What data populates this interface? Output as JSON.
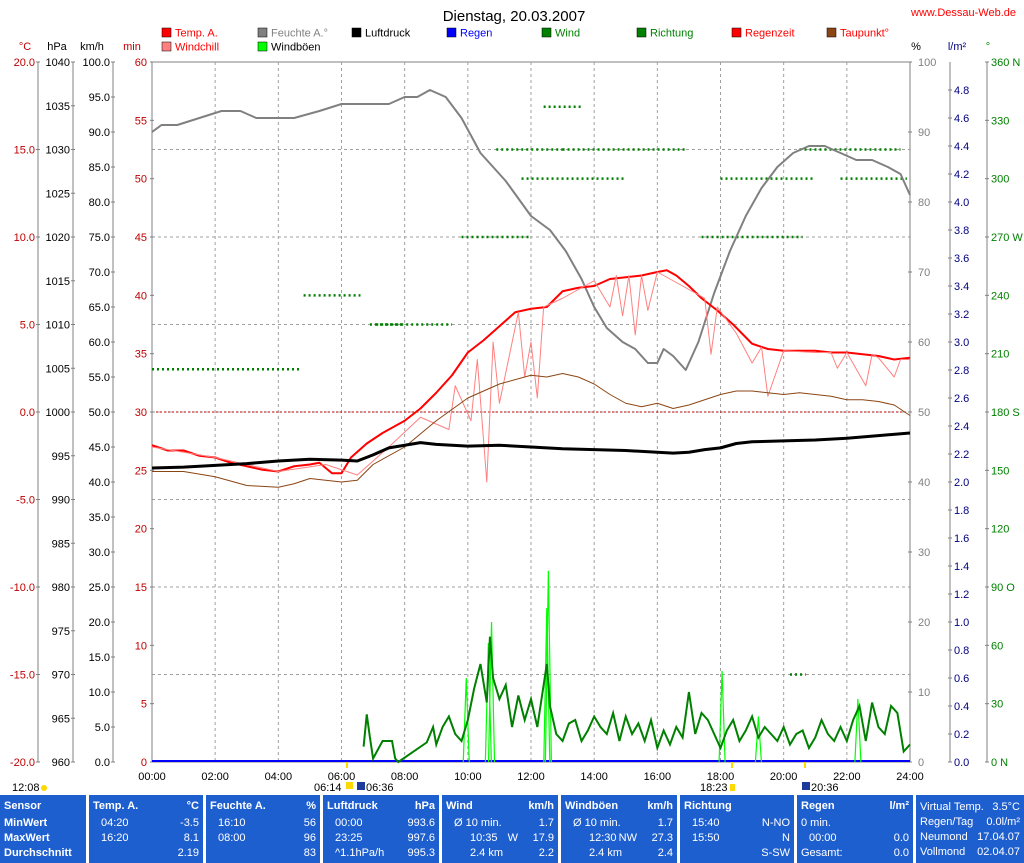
{
  "title": "Dienstag, 20.03.2007",
  "site": "www.Dessau-Web.de",
  "legend": [
    {
      "label": "Temp. A.",
      "color": "#ff0000",
      "text_color": "#ff0000"
    },
    {
      "label": "Windchill",
      "color": "#ff8080",
      "text_color": "#ff0000"
    },
    {
      "label": "Feuchte A.°",
      "color": "#808080",
      "text_color": "#808080"
    },
    {
      "label": "Windböen",
      "color": "#00ff00",
      "text_color": "#000000"
    },
    {
      "label": "Luftdruck",
      "color": "#000000",
      "text_color": "#000000"
    },
    {
      "label": "Regen",
      "color": "#0000ff",
      "text_color": "#0000ff"
    },
    {
      "label": "Wind",
      "color": "#008000",
      "text_color": "#008000"
    },
    {
      "label": "Richtung",
      "color": "#008000",
      "text_color": "#008000"
    },
    {
      "label": "Regenzeit",
      "color": "#ff0000",
      "text_color": "#ff0000"
    },
    {
      "label": "Taupunkt°",
      "color": "#8b4513",
      "text_color": "#ff0000"
    }
  ],
  "axis_units": {
    "temp": "°C",
    "pressure": "hPa",
    "wind": "km/h",
    "minutes": "min",
    "humidity": "%",
    "rain": "l/m²",
    "direction": "°"
  },
  "chart_data": {
    "type": "line",
    "x_ticks": [
      "00:00",
      "02:00",
      "04:00",
      "06:00",
      "08:00",
      "10:00",
      "12:00",
      "14:00",
      "16:00",
      "18:00",
      "20:00",
      "22:00",
      "24:00"
    ],
    "axes": {
      "temp": {
        "min": -20,
        "max": 20,
        "ticks": [
          "20.0",
          "15.0",
          "10.0",
          "5.0",
          "0.0",
          "-5.0",
          "-10.0",
          "-15.0",
          "-20.0"
        ]
      },
      "pressure": {
        "min": 960,
        "max": 1040,
        "ticks": [
          "1040",
          "1035",
          "1030",
          "1025",
          "1020",
          "1015",
          "1010",
          "1005",
          "1000",
          "995",
          "990",
          "985",
          "980",
          "975",
          "970",
          "965",
          "960"
        ]
      },
      "wind": {
        "min": 0,
        "max": 100,
        "ticks": [
          "100.0",
          "95.0",
          "90.0",
          "85.0",
          "80.0",
          "75.0",
          "70.0",
          "65.0",
          "60.0",
          "55.0",
          "50.0",
          "45.0",
          "40.0",
          "35.0",
          "30.0",
          "25.0",
          "20.0",
          "15.0",
          "10.0",
          "5.0",
          "0.0"
        ]
      },
      "minutes": {
        "min": 0,
        "max": 60,
        "ticks": [
          "60",
          "55",
          "50",
          "45",
          "40",
          "35",
          "30",
          "25",
          "20",
          "15",
          "10",
          "5",
          "0"
        ]
      },
      "humidity": {
        "min": 0,
        "max": 100,
        "ticks": [
          "100",
          "90",
          "80",
          "70",
          "60",
          "50",
          "40",
          "30",
          "20",
          "10",
          "0"
        ]
      },
      "rain": {
        "min": 0,
        "max": 5,
        "ticks": [
          "4.8",
          "4.6",
          "4.4",
          "4.2",
          "4.0",
          "3.8",
          "3.6",
          "3.4",
          "3.2",
          "3.0",
          "2.8",
          "2.6",
          "2.4",
          "2.2",
          "2.0",
          "1.8",
          "1.6",
          "1.4",
          "1.2",
          "1.0",
          "0.8",
          "0.6",
          "0.4",
          "0.2",
          "0.0"
        ]
      },
      "direction": {
        "min": 0,
        "max": 360,
        "ticks": [
          {
            "v": 360,
            "t": "360 N"
          },
          {
            "v": 330,
            "t": "330"
          },
          {
            "v": 300,
            "t": "300"
          },
          {
            "v": 270,
            "t": "270 W"
          },
          {
            "v": 240,
            "t": "240"
          },
          {
            "v": 210,
            "t": "210"
          },
          {
            "v": 180,
            "t": "180 S"
          },
          {
            "v": 150,
            "t": "150"
          },
          {
            "v": 120,
            "t": "120"
          },
          {
            "v": 90,
            "t": "90 O"
          },
          {
            "v": 60,
            "t": "60"
          },
          {
            "v": 30,
            "t": "30"
          },
          {
            "v": 0,
            "t": "0 N"
          }
        ]
      }
    },
    "series": [
      {
        "name": "Feuchte A.°",
        "axis": "humidity",
        "color": "#808080",
        "width": 2,
        "x": [
          0,
          0.3,
          0.8,
          1.5,
          2.2,
          2.8,
          3.3,
          3.8,
          4.5,
          5.3,
          6,
          6.8,
          7.5,
          8,
          8.4,
          8.8,
          9.3,
          9.8,
          10.4,
          11.2,
          12,
          12.6,
          13.1,
          13.6,
          14,
          14.4,
          14.9,
          15.3,
          15.7,
          16,
          16.2,
          16.5,
          16.9,
          17.3,
          17.8,
          18.3,
          18.8,
          19.3,
          19.8,
          20.3,
          20.8,
          21.3,
          21.8,
          22.3,
          22.8,
          23.3,
          23.7,
          24
        ],
        "y": [
          90,
          91,
          91,
          92,
          93,
          93,
          92,
          92,
          92,
          93,
          94,
          94,
          94,
          95,
          95,
          96,
          95,
          92,
          87,
          83,
          78,
          76,
          73,
          69,
          65,
          62,
          60,
          59,
          57,
          57,
          59,
          58,
          56,
          60,
          67,
          73,
          78,
          82,
          85,
          87,
          88,
          88,
          87,
          86,
          86,
          85,
          84,
          81
        ]
      },
      {
        "name": "Temp. A.",
        "axis": "temp",
        "color": "#ff0000",
        "width": 2,
        "x": [
          0,
          0.5,
          1,
          1.5,
          2,
          2.5,
          3,
          3.5,
          4,
          4.5,
          5,
          5.3,
          5.7,
          6,
          6.3,
          6.8,
          7.3,
          8,
          8.5,
          9,
          9.5,
          10,
          10.5,
          11,
          11.5,
          12,
          12.5,
          13,
          13.5,
          14,
          14.5,
          15,
          15.5,
          16,
          16.3,
          16.6,
          17,
          17.4,
          17.9,
          18.4,
          19,
          19.5,
          20,
          20.5,
          21,
          21.5,
          22,
          22.5,
          23,
          23.5,
          24
        ],
        "y": [
          -1.9,
          -2.2,
          -2.2,
          -2.5,
          -2.6,
          -2.9,
          -3.1,
          -3.3,
          -3.4,
          -3.1,
          -3.0,
          -2.9,
          -3.5,
          -3.5,
          -2.6,
          -1.8,
          -1.2,
          -0.5,
          0.2,
          1.1,
          2.1,
          3.4,
          4.1,
          4.9,
          5.7,
          5.9,
          6.0,
          6.9,
          7.1,
          7.2,
          7.6,
          7.7,
          7.8,
          8.0,
          8.1,
          7.8,
          7.2,
          6.5,
          5.8,
          5.0,
          3.9,
          3.6,
          3.5,
          3.5,
          3.5,
          3.4,
          3.4,
          3.3,
          3.2,
          3.0,
          3.1
        ]
      },
      {
        "name": "Windchill",
        "axis": "temp",
        "color": "#ff8080",
        "width": 1,
        "x": [
          0,
          2,
          4,
          5.5,
          6.5,
          7.5,
          8.5,
          9.4,
          9.6,
          10.1,
          10.3,
          10.6,
          10.8,
          11,
          11.6,
          11.8,
          12,
          12.2,
          12.4,
          13,
          14,
          14.5,
          14.7,
          14.9,
          15.1,
          15.3,
          15.5,
          15.7,
          16,
          17,
          17.5,
          17.7,
          17.9,
          18.5,
          19,
          19.3,
          19.5,
          20,
          21,
          21.5,
          21.7,
          22,
          22.6,
          22.8,
          23,
          23.5,
          23.7,
          24
        ],
        "y": [
          -2.0,
          -2.6,
          -3.4,
          -3.0,
          -3.6,
          -2.0,
          -0.3,
          -1.0,
          1.5,
          -0.5,
          3.0,
          -4.0,
          4.0,
          0.5,
          5.7,
          2.0,
          4.0,
          0.8,
          6.0,
          6.5,
          7.5,
          6.0,
          7.8,
          5.5,
          7.8,
          4.4,
          7.8,
          5.8,
          8.0,
          7.0,
          6.5,
          3.3,
          6.0,
          4.5,
          2.8,
          3.7,
          0.9,
          3.5,
          3.4,
          3.4,
          2.5,
          3.4,
          1.5,
          3.3,
          3.1,
          2.0,
          3.0,
          3.0
        ]
      },
      {
        "name": "Taupunkt°",
        "axis": "temp",
        "color": "#8b4513",
        "width": 1,
        "x": [
          0,
          1,
          2,
          3,
          4,
          4.5,
          5,
          5.5,
          6,
          6.5,
          7,
          8,
          9,
          10,
          11,
          12,
          12.5,
          13,
          13.5,
          14,
          14.5,
          15,
          15.5,
          16,
          16.5,
          17,
          17.5,
          18,
          18.5,
          19,
          19.5,
          20,
          20.5,
          21,
          21.5,
          22,
          22.5,
          23,
          23.5,
          24
        ],
        "y": [
          -3.4,
          -3.4,
          -3.7,
          -4.2,
          -4.3,
          -4.1,
          -3.8,
          -3.9,
          -4.0,
          -3.9,
          -3.0,
          -2.0,
          -0.5,
          0.8,
          1.6,
          2.1,
          2.0,
          2.2,
          2.0,
          1.6,
          1.0,
          0.5,
          0.3,
          0.5,
          0.2,
          0.4,
          0.7,
          1.0,
          1.2,
          1.2,
          1.1,
          1.0,
          1.1,
          1.0,
          0.9,
          0.7,
          0.7,
          0.6,
          0.4,
          -0.2
        ]
      },
      {
        "name": "Luftdruck",
        "axis": "pressure",
        "color": "#000000",
        "width": 3,
        "x": [
          0,
          1,
          2,
          3,
          4,
          5,
          6,
          6.5,
          7,
          7.5,
          8,
          8.5,
          9,
          10,
          11,
          12,
          13,
          14,
          15,
          16,
          16.5,
          17,
          17.5,
          18,
          18.5,
          19,
          20,
          21,
          22,
          23,
          24
        ],
        "y": [
          993.6,
          993.7,
          993.9,
          994.1,
          994.4,
          994.6,
          994.5,
          994.4,
          995.1,
          995.9,
          996.2,
          996.5,
          996.3,
          996.1,
          996.2,
          996.0,
          995.8,
          995.7,
          995.6,
          995.4,
          995.3,
          995.4,
          995.7,
          995.9,
          996.4,
          996.6,
          996.7,
          996.8,
          997.0,
          997.3,
          997.6
        ]
      }
    ],
    "wind_bars": {
      "axis": "wind",
      "color": "#008000",
      "x": [
        6.7,
        6.8,
        6.9,
        7.0,
        7.3,
        7.6,
        7.7,
        7.8,
        8.7,
        8.9,
        9.0,
        9.2,
        9.4,
        9.6,
        9.8,
        10.0,
        10.2,
        10.4,
        10.6,
        10.7,
        10.8,
        11.0,
        11.2,
        11.4,
        11.6,
        11.8,
        12.0,
        12.2,
        12.4,
        12.5,
        12.6,
        12.8,
        13.0,
        13.2,
        13.4,
        13.6,
        13.8,
        14.0,
        14.2,
        14.4,
        14.6,
        14.8,
        15.0,
        15.2,
        15.4,
        15.6,
        15.8,
        16.0,
        16.2,
        16.4,
        16.6,
        16.8,
        17.0,
        17.2,
        17.4,
        17.6,
        17.8,
        18.0,
        18.2,
        18.4,
        18.6,
        18.8,
        19.0,
        19.2,
        19.4,
        19.6,
        19.8,
        20.0,
        20.2,
        20.4,
        20.6,
        20.8,
        21.0,
        21.2,
        21.4,
        21.6,
        21.8,
        22.0,
        22.2,
        22.4,
        22.6,
        22.8,
        23.0,
        23.2,
        23.4,
        23.6,
        23.8,
        24.0
      ],
      "y": [
        2.2,
        6.8,
        3.5,
        0.5,
        3.0,
        3.0,
        0.5,
        0,
        2.8,
        5.0,
        2.5,
        5.0,
        6.5,
        4.0,
        3.0,
        6.0,
        10.5,
        14.0,
        8.5,
        17.9,
        12.0,
        9.0,
        11.0,
        5.0,
        9.5,
        6.0,
        9.0,
        5.0,
        11.0,
        14.0,
        8.0,
        4.0,
        3.0,
        5.5,
        6.0,
        3.0,
        4.5,
        6.5,
        5.0,
        4.0,
        7.0,
        3.0,
        6.5,
        4.0,
        5.5,
        3.0,
        6.0,
        2.0,
        4.5,
        2.5,
        5.0,
        3.5,
        10.0,
        4.0,
        7.0,
        6.0,
        4.0,
        2.0,
        4.5,
        6.0,
        3.0,
        4.5,
        6.5,
        3.5,
        5.0,
        4.0,
        3.0,
        5.0,
        2.5,
        4.0,
        4.5,
        2.0,
        3.5,
        6.0,
        4.0,
        3.0,
        5.0,
        3.0,
        6.0,
        8.0,
        3.0,
        8.5,
        5.0,
        4.0,
        8.0,
        7.0,
        1.5,
        2.5
      ]
    },
    "gust_peaks": {
      "axis": "wind",
      "color": "#00ff00",
      "x": [
        9.95,
        10.65,
        10.75,
        12.5,
        12.55,
        18.05,
        19.2,
        22.35
      ],
      "y": [
        12.0,
        17.0,
        20.0,
        22.0,
        27.3,
        13.0,
        6.5,
        9.0
      ]
    },
    "direction_marks": {
      "axis": "direction",
      "color": "#008000",
      "segments": [
        {
          "x0": 0,
          "x1": 4.7,
          "y": 202
        },
        {
          "x0": 4.8,
          "x1": 6.6,
          "y": 240
        },
        {
          "x0": 6.9,
          "x1": 8.0,
          "y": 225
        },
        {
          "x0": 7.1,
          "x1": 9.5,
          "y": 225
        },
        {
          "x0": 9.8,
          "x1": 12.0,
          "y": 270
        },
        {
          "x0": 10.9,
          "x1": 13.0,
          "y": 315
        },
        {
          "x0": 11.7,
          "x1": 15.0,
          "y": 300
        },
        {
          "x0": 12.4,
          "x1": 13.6,
          "y": 337
        },
        {
          "x0": 13.0,
          "x1": 16.9,
          "y": 315
        },
        {
          "x0": 17.4,
          "x1": 20.6,
          "y": 270
        },
        {
          "x0": 18.0,
          "x1": 21.0,
          "y": 300
        },
        {
          "x0": 20.5,
          "x1": 23.7,
          "y": 315
        },
        {
          "x0": 21.8,
          "x1": 23.9,
          "y": 300
        },
        {
          "x0": 20.2,
          "x1": 20.7,
          "y": 45
        }
      ]
    },
    "reference_lines": [
      {
        "axis": "temp",
        "y": 0,
        "color": "#cc0000"
      }
    ]
  },
  "sun_moon": {
    "day_left": "12:08",
    "sunrise": "06:14",
    "sunrise2": "06:36",
    "sunset": "18:23",
    "moon": "20:36"
  },
  "stats": {
    "sensor": {
      "header": "Sensor",
      "rows": [
        "MinWert",
        "MaxWert",
        "Durchschnitt"
      ]
    },
    "temp": {
      "header": "Temp. A.",
      "unit": "°C",
      "rows": [
        [
          "04:20",
          "-3.5"
        ],
        [
          "16:20",
          "8.1"
        ],
        [
          "",
          "2.19"
        ]
      ]
    },
    "humidity": {
      "header": "Feuchte A.",
      "unit": "%",
      "rows": [
        [
          "16:10",
          "56"
        ],
        [
          "08:00",
          "96"
        ],
        [
          "",
          "83"
        ]
      ]
    },
    "pressure": {
      "header": "Luftdruck",
      "unit": "hPa",
      "rows": [
        [
          "00:00",
          "993.6"
        ],
        [
          "23:25",
          "997.6"
        ],
        [
          "^1.1hPa/h",
          "995.3"
        ]
      ]
    },
    "wind": {
      "header": "Wind",
      "unit": "km/h",
      "rows": [
        [
          "Ø 10 min.",
          "",
          "1.7"
        ],
        [
          "10:35",
          "W",
          "17.9"
        ],
        [
          "2.4 km",
          "",
          "2.2"
        ]
      ]
    },
    "gusts": {
      "header": "Windböen",
      "unit": "km/h",
      "rows": [
        [
          "Ø 10 min.",
          "",
          "1.7"
        ],
        [
          "12:30",
          "NW",
          "27.3"
        ],
        [
          "2.4 km",
          "",
          "2.4"
        ]
      ]
    },
    "direction": {
      "header": "Richtung",
      "rows": [
        [
          "15:40",
          "N-NO"
        ],
        [
          "15:50",
          "N"
        ],
        [
          "",
          "S-SW"
        ]
      ]
    },
    "rain": {
      "header": "Regen",
      "unit": "l/m²",
      "rows": [
        [
          "0 min.",
          ""
        ],
        [
          "00:00",
          "0.0"
        ],
        [
          "Gesamt:",
          "0.0"
        ]
      ]
    },
    "extra": {
      "rows": [
        [
          "Virtual Temp.",
          "3.5°C"
        ],
        [
          "Regen/Tag",
          "0.0l/m²"
        ],
        [
          "Neumond",
          "17.04.07"
        ],
        [
          "Vollmond",
          "02.04.07"
        ]
      ]
    }
  }
}
